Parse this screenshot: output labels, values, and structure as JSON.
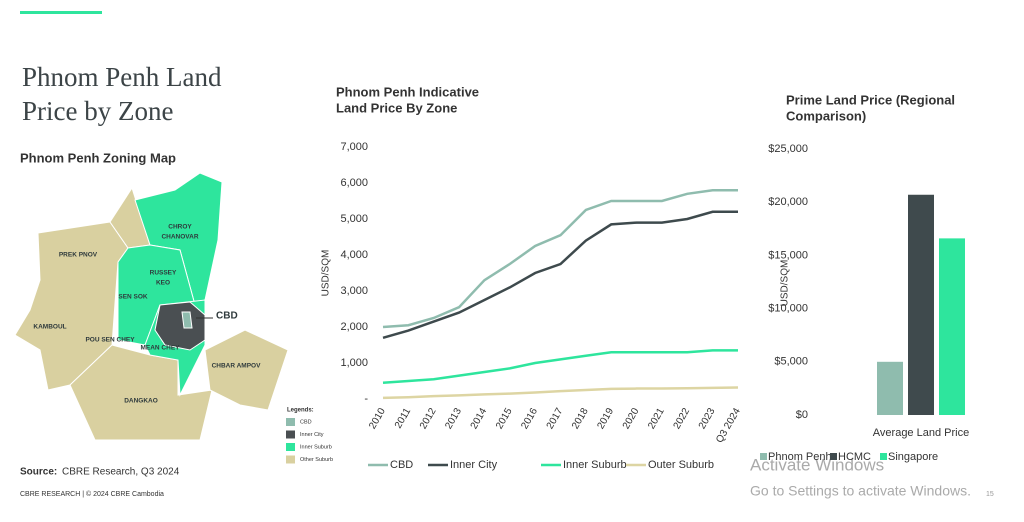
{
  "page": {
    "title_line1": "Phnom Penh Land",
    "title_line2": "Price by Zone",
    "map_title": "Phnom Penh Zoning Map",
    "source_label": "Source:",
    "source_text": "CBRE Research, Q3 2024",
    "footer": "CBRE RESEARCH | © 2024 CBRE Cambodia",
    "watermark_line1": "Activate Windows",
    "watermark_line2": "Go to Settings to activate Windows.",
    "page_number": "15"
  },
  "map": {
    "districts": [
      "PREK PNOV",
      "CHROY",
      "CHANOVAR",
      "RUSSEY",
      "KEO",
      "SEN SOK",
      "KAMBOUL",
      "POU SEN CHEY",
      "MEAN CHEY",
      "CBD",
      "CHBAR AMPOV",
      "DANGKAO"
    ],
    "legend_title": "Legends:",
    "legend": [
      {
        "name": "CBD",
        "color": "#8fbcae"
      },
      {
        "name": "Inner City",
        "color": "#4a4f52"
      },
      {
        "name": "Inner Suburb",
        "color": "#2ee59d"
      },
      {
        "name": "Other Suburb",
        "color": "#d9d0a0"
      }
    ]
  },
  "chart_data": [
    {
      "type": "line",
      "title_line1": "Phnom Penh Indicative",
      "title_line2": "Land Price By Zone",
      "y_label": "USD/SQM",
      "categories": [
        "2010",
        "2011",
        "2012",
        "2013",
        "2014",
        "2015",
        "2016",
        "2017",
        "2018",
        "2019",
        "2020",
        "2021",
        "2022",
        "2023",
        "Q3 2024"
      ],
      "ylim": [
        0,
        7000
      ],
      "yticks": [
        {
          "value": 0,
          "label": "-"
        },
        {
          "value": 1000,
          "label": "1,000"
        },
        {
          "value": 2000,
          "label": "2,000"
        },
        {
          "value": 3000,
          "label": "3,000"
        },
        {
          "value": 4000,
          "label": "4,000"
        },
        {
          "value": 5000,
          "label": "5,000"
        },
        {
          "value": 6000,
          "label": "6,000"
        },
        {
          "value": 7000,
          "label": "7,000"
        }
      ],
      "series": [
        {
          "name": "CBD",
          "color": "#8fbcae",
          "values": [
            2000,
            2050,
            2250,
            2550,
            3300,
            3750,
            4250,
            4550,
            5250,
            5500,
            5500,
            5500,
            5700,
            5800,
            5800
          ]
        },
        {
          "name": "Inner City",
          "color": "#3e4a4d",
          "values": [
            1700,
            1900,
            2150,
            2400,
            2750,
            3100,
            3500,
            3750,
            4400,
            4850,
            4900,
            4900,
            5000,
            5200,
            5200
          ]
        },
        {
          "name": "Inner Suburb",
          "color": "#2ee59d",
          "values": [
            450,
            500,
            550,
            650,
            750,
            850,
            1000,
            1100,
            1200,
            1300,
            1300,
            1300,
            1300,
            1350,
            1350
          ]
        },
        {
          "name": "Outer Suburb",
          "color": "#ddd5a3",
          "values": [
            30,
            50,
            80,
            100,
            130,
            150,
            180,
            220,
            250,
            280,
            290,
            290,
            300,
            310,
            320
          ]
        }
      ]
    },
    {
      "type": "bar",
      "title_line1": "Prime Land Price (Regional",
      "title_line2": "Comparison)",
      "y_label": "USD/SQM",
      "categories": [
        "Average Land Price"
      ],
      "ylim": [
        0,
        25000
      ],
      "yticks": [
        {
          "value": 0,
          "label": "$0"
        },
        {
          "value": 5000,
          "label": "$5,000"
        },
        {
          "value": 10000,
          "label": "$10,000"
        },
        {
          "value": 15000,
          "label": "$15,000"
        },
        {
          "value": 20000,
          "label": "$20,000"
        },
        {
          "value": 25000,
          "label": "$25,000"
        }
      ],
      "series": [
        {
          "name": "Phnom Penh",
          "color": "#8fbcae",
          "values": [
            5000
          ]
        },
        {
          "name": "HCMC",
          "color": "#3f4a4d",
          "values": [
            20700
          ]
        },
        {
          "name": "Singapore",
          "color": "#2ee59d",
          "values": [
            16600
          ]
        }
      ]
    }
  ]
}
